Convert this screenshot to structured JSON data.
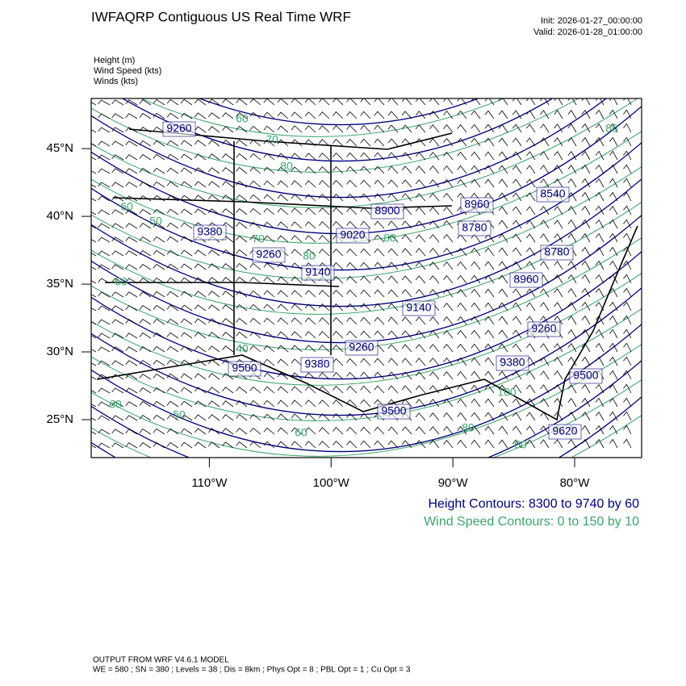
{
  "map": {
    "title": "IWFAQRP Contiguous US Real Time WRF",
    "init": "Init: 2026-01-27_00:00:00",
    "valid": "Valid: 2026-01-28_01:00:00",
    "fields": [
      "Height   (m)",
      "Wind Speed   (kts)",
      "Winds   (kts)"
    ],
    "xlim": [
      -119.7,
      -74.5
    ],
    "ylim": [
      22.2,
      48.7
    ],
    "xticks": [
      {
        "value": -110,
        "label": "110°W"
      },
      {
        "value": -100,
        "label": "100°W"
      },
      {
        "value": -90,
        "label": "90°W"
      },
      {
        "value": -80,
        "label": "80°W"
      }
    ],
    "yticks": [
      {
        "value": 25,
        "label": "25°N"
      },
      {
        "value": 30,
        "label": "30°N"
      },
      {
        "value": 35,
        "label": "35°N"
      },
      {
        "value": 40,
        "label": "40°N"
      },
      {
        "value": 45,
        "label": "45°N"
      }
    ],
    "height_labels": [
      "9260",
      "9380",
      "9260",
      "9140",
      "9020",
      "8900",
      "8960",
      "8780",
      "8540",
      "8780",
      "8960",
      "9140",
      "9260",
      "9380",
      "9500",
      "9260",
      "9380",
      "9500",
      "9500",
      "9620"
    ],
    "wind_labels": [
      "60",
      "70",
      "80",
      "60",
      "50",
      "70",
      "80",
      "80",
      "60",
      "40",
      "60",
      "50",
      "60",
      "80",
      "100",
      "60",
      "80"
    ],
    "height_legend": "Height Contours: 8300 to 9740 by 60",
    "wind_legend": "Wind Speed Contours: 0 to 150 by 10",
    "footer": [
      "OUTPUT FROM WRF V4.6.1 MODEL",
      "WE = 580 ; SN = 380 ; Levels = 38 ; Dis = 8km ; Phys Opt = 8 ; PBL Opt = 1 ; Cu Opt = 3"
    ]
  }
}
